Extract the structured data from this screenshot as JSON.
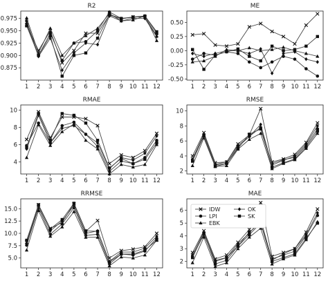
{
  "chart_data": [
    {
      "type": "line",
      "title": "R2",
      "x": [
        1,
        2,
        3,
        4,
        5,
        6,
        7,
        8,
        9,
        10,
        11,
        12
      ],
      "ylim": [
        0.85,
        0.99
      ],
      "yticks": [
        0.875,
        0.9,
        0.925,
        0.95,
        0.975
      ],
      "ytick_labels": [
        "0.875",
        "0.900",
        "0.925",
        "0.950",
        "0.975"
      ],
      "series": [
        {
          "name": "IDW",
          "values": [
            0.962,
            0.91,
            0.95,
            0.885,
            0.91,
            0.945,
            0.945,
            0.982,
            0.974,
            0.978,
            0.978,
            0.94
          ]
        },
        {
          "name": "LPI",
          "values": [
            0.97,
            0.9,
            0.945,
            0.89,
            0.925,
            0.928,
            0.95,
            0.988,
            0.975,
            0.978,
            0.98,
            0.945
          ]
        },
        {
          "name": "EBK",
          "values": [
            0.976,
            0.905,
            0.955,
            0.9,
            0.925,
            0.94,
            0.955,
            0.985,
            0.97,
            0.972,
            0.98,
            0.93
          ]
        },
        {
          "name": "OK",
          "values": [
            0.965,
            0.898,
            0.935,
            0.87,
            0.905,
            0.925,
            0.922,
            0.98,
            0.97,
            0.975,
            0.975,
            0.938
          ]
        },
        {
          "name": "SK",
          "values": [
            0.96,
            0.9,
            0.94,
            0.858,
            0.9,
            0.905,
            0.935,
            0.983,
            0.975,
            0.977,
            0.98,
            0.948
          ]
        }
      ]
    },
    {
      "type": "line",
      "title": "ME",
      "x": [
        1,
        2,
        3,
        4,
        5,
        6,
        7,
        8,
        9,
        10,
        11,
        12
      ],
      "ylim": [
        -0.52,
        0.7
      ],
      "yticks": [
        -0.5,
        -0.25,
        0.0,
        0.25,
        0.5
      ],
      "ytick_labels": [
        "-0.50",
        "-0.25",
        "0.00",
        "0.25",
        "0.50"
      ],
      "series": [
        {
          "name": "IDW",
          "values": [
            0.28,
            0.3,
            0.1,
            0.08,
            0.12,
            0.42,
            0.48,
            0.34,
            0.25,
            0.12,
            0.45,
            0.65
          ]
        },
        {
          "name": "LPI",
          "values": [
            -0.15,
            -0.05,
            -0.08,
            -0.02,
            -0.05,
            -0.2,
            -0.3,
            -0.2,
            -0.1,
            -0.15,
            -0.32,
            -0.45
          ]
        },
        {
          "name": "EBK",
          "values": [
            -0.2,
            -0.18,
            -0.1,
            0.02,
            0.0,
            0.05,
            0.0,
            0.02,
            0.06,
            0.0,
            -0.05,
            -0.1
          ]
        },
        {
          "name": "OK",
          "values": [
            -0.05,
            -0.1,
            -0.05,
            0.0,
            0.0,
            -0.05,
            0.03,
            -0.4,
            -0.05,
            -0.02,
            -0.15,
            -0.2
          ]
        },
        {
          "name": "SK",
          "values": [
            0.02,
            -0.33,
            -0.08,
            -0.02,
            0.03,
            -0.1,
            -0.18,
            0.08,
            0.0,
            0.02,
            0.08,
            0.25
          ]
        }
      ]
    },
    {
      "type": "line",
      "title": "RMAE",
      "x": [
        1,
        2,
        3,
        4,
        5,
        6,
        7,
        8,
        9,
        10,
        11,
        12
      ],
      "ylim": [
        2.6,
        10.6
      ],
      "yticks": [
        4,
        6,
        8,
        10
      ],
      "ytick_labels": [
        "4",
        "6",
        "8",
        "10"
      ],
      "series": [
        {
          "name": "IDW",
          "values": [
            6.6,
            9.8,
            6.8,
            9.2,
            9.2,
            9.0,
            8.2,
            3.8,
            4.8,
            4.5,
            5.3,
            7.3
          ]
        },
        {
          "name": "LPI",
          "values": [
            5.9,
            8.5,
            6.2,
            8.2,
            8.6,
            7.2,
            5.8,
            2.9,
            4.1,
            3.8,
            4.5,
            6.5
          ]
        },
        {
          "name": "EBK",
          "values": [
            4.5,
            8.3,
            5.9,
            7.5,
            8.4,
            6.5,
            5.5,
            2.6,
            3.7,
            3.4,
            3.7,
            6.0
          ]
        },
        {
          "name": "OK",
          "values": [
            5.5,
            9.4,
            6.2,
            7.9,
            8.2,
            7.2,
            6.2,
            3.2,
            4.5,
            4.2,
            5.0,
            7.0
          ]
        },
        {
          "name": "SK",
          "values": [
            5.7,
            9.6,
            6.5,
            9.6,
            9.4,
            8.5,
            6.5,
            3.3,
            4.4,
            3.8,
            4.3,
            6.2
          ]
        }
      ]
    },
    {
      "type": "line",
      "title": "RMSE",
      "x": [
        1,
        2,
        3,
        4,
        5,
        6,
        7,
        8,
        9,
        10,
        11,
        12
      ],
      "ylim": [
        1.6,
        10.8
      ],
      "yticks": [
        2,
        4,
        6,
        8,
        10
      ],
      "ytick_labels": [
        "2",
        "4",
        "6",
        "8",
        "10"
      ],
      "series": [
        {
          "name": "IDW",
          "values": [
            4.0,
            7.1,
            3.1,
            3.2,
            5.6,
            6.8,
            10.3,
            3.2,
            3.6,
            4.2,
            5.8,
            8.4
          ]
        },
        {
          "name": "LPI",
          "values": [
            3.5,
            6.6,
            2.8,
            3.0,
            5.2,
            6.6,
            7.8,
            3.0,
            3.5,
            3.8,
            5.4,
            7.6
          ]
        },
        {
          "name": "EBK",
          "values": [
            2.7,
            6.4,
            2.6,
            2.7,
            4.9,
            6.2,
            7.0,
            2.3,
            3.0,
            3.5,
            5.0,
            7.0
          ]
        },
        {
          "name": "OK",
          "values": [
            3.6,
            6.9,
            2.9,
            3.2,
            5.4,
            6.6,
            8.2,
            2.8,
            3.4,
            4.0,
            5.6,
            8.0
          ]
        },
        {
          "name": "SK",
          "values": [
            3.3,
            6.7,
            2.6,
            3.0,
            5.0,
            6.9,
            7.6,
            2.5,
            3.1,
            3.6,
            5.2,
            7.3
          ]
        }
      ]
    },
    {
      "type": "line",
      "title": "RRMSE",
      "x": [
        1,
        2,
        3,
        4,
        5,
        6,
        7,
        8,
        9,
        10,
        11,
        12
      ],
      "ylim": [
        3.0,
        17.0
      ],
      "yticks": [
        5.0,
        7.5,
        10.0,
        12.5,
        15.0
      ],
      "ytick_labels": [
        "5.0",
        "7.5",
        "10.0",
        "12.5",
        "15.0"
      ],
      "series": [
        {
          "name": "IDW",
          "values": [
            8.2,
            15.8,
            11.0,
            12.2,
            16.0,
            10.4,
            12.6,
            5.0,
            6.5,
            6.8,
            7.3,
            10.0
          ]
        },
        {
          "name": "LPI",
          "values": [
            7.6,
            15.2,
            9.8,
            11.9,
            15.2,
            9.6,
            9.8,
            3.8,
            5.8,
            5.6,
            6.4,
            9.0
          ]
        },
        {
          "name": "EBK",
          "values": [
            6.6,
            14.6,
            9.4,
            11.3,
            14.4,
            9.2,
            9.2,
            3.4,
            5.2,
            5.0,
            5.6,
            8.6
          ]
        },
        {
          "name": "OK",
          "values": [
            8.0,
            15.5,
            10.5,
            12.5,
            15.6,
            10.0,
            10.5,
            4.3,
            6.2,
            6.2,
            7.0,
            9.4
          ]
        },
        {
          "name": "SK",
          "values": [
            8.6,
            15.8,
            10.9,
            12.8,
            16.1,
            10.5,
            10.4,
            4.2,
            5.8,
            5.8,
            6.6,
            8.6
          ]
        }
      ]
    },
    {
      "type": "line",
      "title": "MAE",
      "x": [
        1,
        2,
        3,
        4,
        5,
        6,
        7,
        8,
        9,
        10,
        11,
        12
      ],
      "ylim": [
        1.5,
        6.9
      ],
      "yticks": [
        2,
        3,
        4,
        5,
        6
      ],
      "ytick_labels": [
        "2",
        "3",
        "4",
        "5",
        "6"
      ],
      "series": [
        {
          "name": "IDW",
          "values": [
            2.7,
            4.4,
            2.2,
            2.5,
            3.5,
            4.5,
            6.6,
            2.4,
            2.7,
            3.0,
            4.3,
            6.1
          ]
        },
        {
          "name": "LPI",
          "values": [
            2.4,
            4.1,
            2.0,
            2.3,
            3.2,
            4.3,
            5.0,
            2.2,
            2.5,
            2.8,
            4.0,
            5.6
          ]
        },
        {
          "name": "EBK",
          "values": [
            1.9,
            3.9,
            1.6,
            1.9,
            3.0,
            3.9,
            4.6,
            1.8,
            2.2,
            2.5,
            3.7,
            5.1
          ]
        },
        {
          "name": "OK",
          "values": [
            2.5,
            4.3,
            2.1,
            2.3,
            3.4,
            4.2,
            5.3,
            2.1,
            2.6,
            3.0,
            4.1,
            5.8
          ]
        },
        {
          "name": "SK",
          "values": [
            2.3,
            4.2,
            1.8,
            2.1,
            3.2,
            4.1,
            5.0,
            2.0,
            2.3,
            2.6,
            3.8,
            5.0
          ]
        }
      ]
    }
  ],
  "legend": {
    "location": "upper-right of MAE panel",
    "entries": [
      {
        "name": "IDW",
        "marker": "x",
        "label": "IDW"
      },
      {
        "name": "LPI",
        "marker": "circle",
        "label": "LPI"
      },
      {
        "name": "EBK",
        "marker": "triangle",
        "label": "EBK"
      },
      {
        "name": "OK",
        "marker": "diamond",
        "label": "OK"
      },
      {
        "name": "SK",
        "marker": "square",
        "label": "SK"
      }
    ]
  },
  "style": {
    "line_color": "#444444",
    "marker_color": "#111111",
    "text_color": "#222222"
  }
}
